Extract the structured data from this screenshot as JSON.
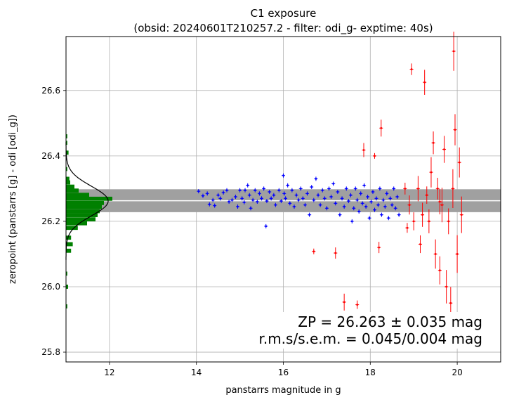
{
  "chart_data": {
    "type": "scatter",
    "title_line1": "C1 exposure",
    "title_line2": "(obsid: 20240601T210257.2 - filter: odi_g- exptime: 40s)",
    "xlabel": "panstarrs magnitude in g",
    "ylabel": "zeropoint (panstarrs [g] - odi [odi_g])",
    "xlim": [
      11.0,
      21.0
    ],
    "ylim": [
      25.77,
      26.765
    ],
    "x_ticks": [
      {
        "value": 12,
        "label": "12"
      },
      {
        "value": 14,
        "label": "14"
      },
      {
        "value": 16,
        "label": "16"
      },
      {
        "value": 18,
        "label": "18"
      },
      {
        "value": 20,
        "label": "20"
      }
    ],
    "y_ticks": [
      {
        "value": 25.8,
        "label": "25.8"
      },
      {
        "value": 26.0,
        "label": "26.0"
      },
      {
        "value": 26.2,
        "label": "26.2"
      },
      {
        "value": 26.4,
        "label": "26.4"
      },
      {
        "value": 26.6,
        "label": "26.6"
      }
    ],
    "grid": true,
    "zeropoint": 26.263,
    "band_half_width": 0.035,
    "annotation_line1": "ZP = 26.263 ± 0.035 mag",
    "annotation_line2": "r.m.s/s.e.m. = 0.045/0.004 mag",
    "colors": {
      "used_points": "#0000ff",
      "rejected_points": "#ff0000",
      "histogram": "#008000",
      "band": "#a0a0a0",
      "zp_line": "#ffffff",
      "gauss_curve": "#000000"
    },
    "histogram": {
      "bin_width": 0.0125,
      "bins": [
        {
          "y": 25.94,
          "count": 0.03
        },
        {
          "y": 26.0,
          "count": 0.05
        },
        {
          "y": 26.04,
          "count": 0.03
        },
        {
          "y": 26.11,
          "count": 0.12
        },
        {
          "y": 26.13,
          "count": 0.16
        },
        {
          "y": 26.15,
          "count": 0.12
        },
        {
          "y": 26.18,
          "count": 0.28
        },
        {
          "y": 26.194,
          "count": 0.5
        },
        {
          "y": 26.206,
          "count": 0.7
        },
        {
          "y": 26.219,
          "count": 0.75
        },
        {
          "y": 26.231,
          "count": 0.8
        },
        {
          "y": 26.244,
          "count": 0.85
        },
        {
          "y": 26.256,
          "count": 0.9
        },
        {
          "y": 26.269,
          "count": 1.1
        },
        {
          "y": 26.281,
          "count": 0.55
        },
        {
          "y": 26.294,
          "count": 0.3
        },
        {
          "y": 26.306,
          "count": 0.2
        },
        {
          "y": 26.319,
          "count": 0.1
        },
        {
          "y": 26.33,
          "count": 0.08
        },
        {
          "y": 26.36,
          "count": 0.03
        },
        {
          "y": 26.41,
          "count": 0.06
        },
        {
          "y": 26.44,
          "count": 0.03
        },
        {
          "y": 26.46,
          "count": 0.03
        }
      ]
    },
    "gaussian": {
      "mu": 26.262,
      "sigma": 0.045,
      "peak": 1.0
    },
    "series": [
      {
        "color": "blue",
        "points": [
          {
            "x": 14.05,
            "y": 26.292
          },
          {
            "x": 14.15,
            "y": 26.278
          },
          {
            "x": 14.25,
            "y": 26.285
          },
          {
            "x": 14.3,
            "y": 26.252
          },
          {
            "x": 14.38,
            "y": 26.265
          },
          {
            "x": 14.42,
            "y": 26.248
          },
          {
            "x": 14.5,
            "y": 26.28
          },
          {
            "x": 14.55,
            "y": 26.27
          },
          {
            "x": 14.62,
            "y": 26.288
          },
          {
            "x": 14.7,
            "y": 26.295
          },
          {
            "x": 14.75,
            "y": 26.26
          },
          {
            "x": 14.82,
            "y": 26.265
          },
          {
            "x": 14.9,
            "y": 26.275
          },
          {
            "x": 14.95,
            "y": 26.245
          },
          {
            "x": 15.0,
            "y": 26.295
          },
          {
            "x": 15.05,
            "y": 26.27
          },
          {
            "x": 15.1,
            "y": 26.258
          },
          {
            "x": 15.12,
            "y": 26.295
          },
          {
            "x": 15.18,
            "y": 26.31
          },
          {
            "x": 15.22,
            "y": 26.28
          },
          {
            "x": 15.25,
            "y": 26.24
          },
          {
            "x": 15.3,
            "y": 26.265
          },
          {
            "x": 15.35,
            "y": 26.295
          },
          {
            "x": 15.4,
            "y": 26.26
          },
          {
            "x": 15.45,
            "y": 26.285
          },
          {
            "x": 15.5,
            "y": 26.27
          },
          {
            "x": 15.55,
            "y": 26.3
          },
          {
            "x": 15.6,
            "y": 26.185
          },
          {
            "x": 15.62,
            "y": 26.262
          },
          {
            "x": 15.68,
            "y": 26.29
          },
          {
            "x": 15.72,
            "y": 26.27
          },
          {
            "x": 15.78,
            "y": 26.28
          },
          {
            "x": 15.82,
            "y": 26.25
          },
          {
            "x": 15.9,
            "y": 26.295
          },
          {
            "x": 15.95,
            "y": 26.262
          },
          {
            "x": 16.0,
            "y": 26.34
          },
          {
            "x": 16.02,
            "y": 26.285
          },
          {
            "x": 16.05,
            "y": 26.27
          },
          {
            "x": 16.1,
            "y": 26.31
          },
          {
            "x": 16.15,
            "y": 26.255
          },
          {
            "x": 16.2,
            "y": 26.295
          },
          {
            "x": 16.25,
            "y": 26.245
          },
          {
            "x": 16.3,
            "y": 26.28
          },
          {
            "x": 16.35,
            "y": 26.265
          },
          {
            "x": 16.4,
            "y": 26.3
          },
          {
            "x": 16.45,
            "y": 26.27
          },
          {
            "x": 16.5,
            "y": 26.25
          },
          {
            "x": 16.55,
            "y": 26.285
          },
          {
            "x": 16.6,
            "y": 26.22
          },
          {
            "x": 16.65,
            "y": 26.305
          },
          {
            "x": 16.7,
            "y": 26.265
          },
          {
            "x": 16.75,
            "y": 26.33
          },
          {
            "x": 16.8,
            "y": 26.28
          },
          {
            "x": 16.85,
            "y": 26.25
          },
          {
            "x": 16.9,
            "y": 26.295
          },
          {
            "x": 16.95,
            "y": 26.27
          },
          {
            "x": 17.0,
            "y": 26.24
          },
          {
            "x": 17.05,
            "y": 26.3
          },
          {
            "x": 17.1,
            "y": 26.275
          },
          {
            "x": 17.15,
            "y": 26.315
          },
          {
            "x": 17.2,
            "y": 26.255
          },
          {
            "x": 17.25,
            "y": 26.29
          },
          {
            "x": 17.3,
            "y": 26.22
          },
          {
            "x": 17.35,
            "y": 26.27
          },
          {
            "x": 17.4,
            "y": 26.245
          },
          {
            "x": 17.45,
            "y": 26.3
          },
          {
            "x": 17.5,
            "y": 26.262
          },
          {
            "x": 17.55,
            "y": 26.28
          },
          {
            "x": 17.58,
            "y": 26.2
          },
          {
            "x": 17.62,
            "y": 26.24
          },
          {
            "x": 17.66,
            "y": 26.3
          },
          {
            "x": 17.7,
            "y": 26.265
          },
          {
            "x": 17.74,
            "y": 26.23
          },
          {
            "x": 17.78,
            "y": 26.285
          },
          {
            "x": 17.82,
            "y": 26.255
          },
          {
            "x": 17.86,
            "y": 26.31
          },
          {
            "x": 17.9,
            "y": 26.245
          },
          {
            "x": 17.94,
            "y": 26.275
          },
          {
            "x": 17.98,
            "y": 26.21
          },
          {
            "x": 18.02,
            "y": 26.26
          },
          {
            "x": 18.06,
            "y": 26.29
          },
          {
            "x": 18.1,
            "y": 26.235
          },
          {
            "x": 18.14,
            "y": 26.27
          },
          {
            "x": 18.18,
            "y": 26.25
          },
          {
            "x": 18.22,
            "y": 26.3
          },
          {
            "x": 18.26,
            "y": 26.22
          },
          {
            "x": 18.3,
            "y": 26.265
          },
          {
            "x": 18.34,
            "y": 26.245
          },
          {
            "x": 18.38,
            "y": 26.285
          },
          {
            "x": 18.42,
            "y": 26.21
          },
          {
            "x": 18.46,
            "y": 26.27
          },
          {
            "x": 18.5,
            "y": 26.25
          },
          {
            "x": 18.54,
            "y": 26.3
          },
          {
            "x": 18.58,
            "y": 26.24
          },
          {
            "x": 18.62,
            "y": 26.275
          },
          {
            "x": 18.66,
            "y": 26.22
          }
        ]
      },
      {
        "color": "red",
        "points": [
          {
            "x": 16.7,
            "y": 26.108
          },
          {
            "x": 17.2,
            "y": 26.103
          },
          {
            "x": 17.4,
            "y": 25.953
          },
          {
            "x": 17.7,
            "y": 25.945
          },
          {
            "x": 17.85,
            "y": 26.418
          },
          {
            "x": 18.1,
            "y": 26.4
          },
          {
            "x": 18.2,
            "y": 26.12
          },
          {
            "x": 18.25,
            "y": 26.485
          },
          {
            "x": 18.8,
            "y": 26.3
          },
          {
            "x": 18.9,
            "y": 26.25
          },
          {
            "x": 18.95,
            "y": 26.665
          },
          {
            "x": 19.0,
            "y": 26.2
          },
          {
            "x": 19.1,
            "y": 26.3
          },
          {
            "x": 19.15,
            "y": 26.13
          },
          {
            "x": 19.25,
            "y": 26.625
          },
          {
            "x": 19.3,
            "y": 26.28
          },
          {
            "x": 19.35,
            "y": 26.2
          },
          {
            "x": 19.4,
            "y": 26.35
          },
          {
            "x": 19.45,
            "y": 26.44
          },
          {
            "x": 19.5,
            "y": 26.1
          },
          {
            "x": 19.55,
            "y": 26.3
          },
          {
            "x": 19.6,
            "y": 26.05
          },
          {
            "x": 19.65,
            "y": 26.25
          },
          {
            "x": 19.7,
            "y": 26.42
          },
          {
            "x": 19.75,
            "y": 26.0
          },
          {
            "x": 19.8,
            "y": 26.2
          },
          {
            "x": 19.85,
            "y": 25.95
          },
          {
            "x": 19.9,
            "y": 26.3
          },
          {
            "x": 19.95,
            "y": 26.48
          },
          {
            "x": 20.0,
            "y": 26.1
          },
          {
            "x": 20.05,
            "y": 26.38
          },
          {
            "x": 20.1,
            "y": 26.22
          },
          {
            "x": 19.92,
            "y": 26.72
          },
          {
            "x": 19.6,
            "y": 26.26
          },
          {
            "x": 19.2,
            "y": 26.22
          },
          {
            "x": 18.85,
            "y": 26.18
          }
        ]
      }
    ]
  }
}
